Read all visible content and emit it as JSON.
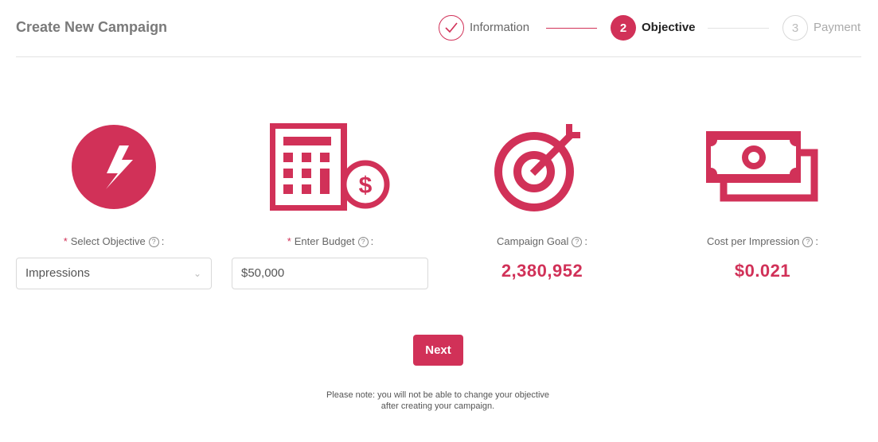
{
  "header": {
    "title": "Create New Campaign"
  },
  "steps": [
    {
      "number": "1",
      "label": "Information",
      "status": "completed",
      "icon": "check-icon"
    },
    {
      "number": "2",
      "label": "Objective",
      "status": "active"
    },
    {
      "number": "3",
      "label": "Payment",
      "status": "pending"
    }
  ],
  "fields": {
    "objective": {
      "label": "Select Objective",
      "suffix": ":",
      "required_mark": "*",
      "help": "?",
      "value": "Impressions",
      "icon": "lightning-icon"
    },
    "budget": {
      "label": "Enter Budget",
      "suffix": ":",
      "required_mark": "*",
      "help": "?",
      "value": "$50,000",
      "icon": "calculator-dollar-icon"
    },
    "goal": {
      "label": "Campaign Goal",
      "suffix": ":",
      "help": "?",
      "value": "2,380,952",
      "icon": "target-icon"
    },
    "cpi": {
      "label": "Cost per Impression",
      "suffix": ":",
      "help": "?",
      "value": "$0.021",
      "icon": "money-bill-icon"
    }
  },
  "next_label": "Next",
  "note": {
    "line1": "Please note: you will not be able to change your objective",
    "line2": "after creating your campaign."
  },
  "colors": {
    "accent": "#d13158",
    "muted": "#d9d9d9"
  }
}
